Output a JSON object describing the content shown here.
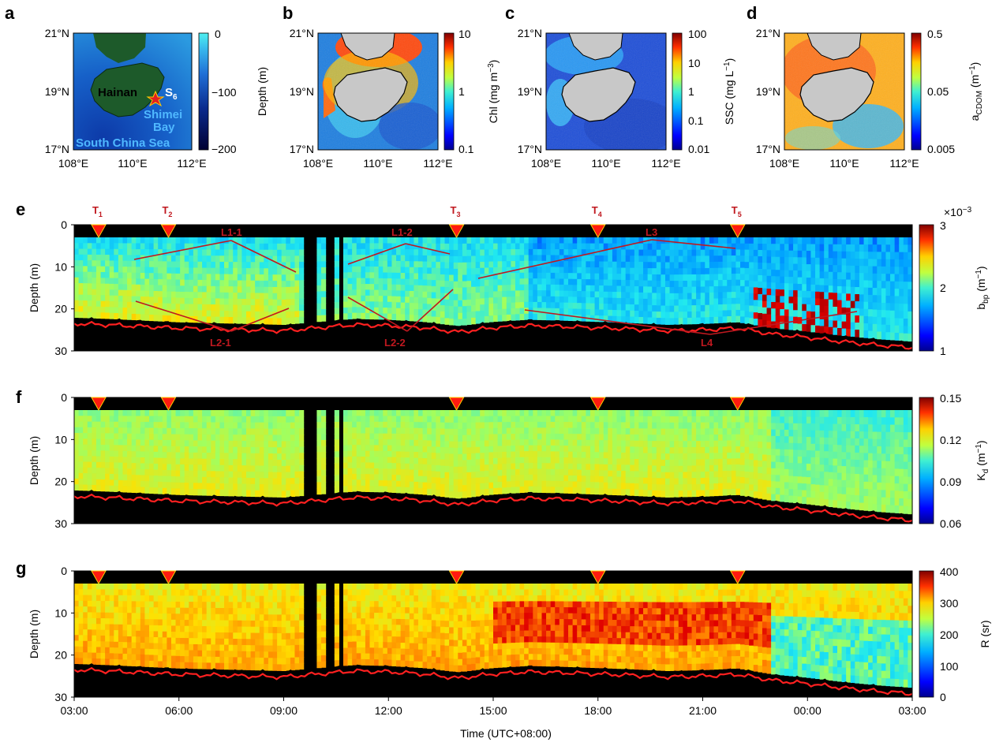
{
  "panel_labels": [
    "a",
    "b",
    "c",
    "d",
    "e",
    "f",
    "g"
  ],
  "chart_data": [
    {
      "id": "a",
      "type": "heatmap",
      "title": "",
      "xticks": [
        "108°E",
        "110°E",
        "112°E"
      ],
      "yticks": [
        "21°N",
        "19°N",
        "17°N"
      ],
      "colorbar": {
        "label": "Depth (m)",
        "ticks": [
          "0",
          "−100",
          "−200"
        ],
        "range": [
          -200,
          0
        ],
        "colormap": [
          "#000033",
          "#0a2a8c",
          "#1f6fd6",
          "#36b3ec",
          "#4ff0f0"
        ]
      },
      "annotations": {
        "island": "Hainan",
        "station": "S",
        "station_sub": "6",
        "bay_line1": "Shimei",
        "bay_line2": "Bay",
        "sea": "South China Sea"
      }
    },
    {
      "id": "b",
      "type": "heatmap",
      "xticks": [
        "108°E",
        "110°E",
        "112°E"
      ],
      "yticks": [
        "21°N",
        "19°N",
        "17°N"
      ],
      "colorbar": {
        "label_main": "Chl (mg m",
        "label_sup": "−3",
        "label_end": ")",
        "ticks": [
          "10",
          "1",
          "0.1"
        ],
        "range": [
          0.1,
          10
        ],
        "scale": "log"
      }
    },
    {
      "id": "c",
      "type": "heatmap",
      "xticks": [
        "108°E",
        "110°E",
        "112°E"
      ],
      "yticks": [
        "21°N",
        "19°N",
        "17°N"
      ],
      "colorbar": {
        "label_main": "SSC (mg L",
        "label_sup": "−1",
        "label_end": ")",
        "ticks": [
          "100",
          "10",
          "1",
          "0.1",
          "0.01"
        ],
        "range": [
          0.01,
          100
        ],
        "scale": "log"
      }
    },
    {
      "id": "d",
      "type": "heatmap",
      "xticks": [
        "108°E",
        "110°E",
        "112°E"
      ],
      "yticks": [
        "21°N",
        "19°N",
        "17°N"
      ],
      "colorbar": {
        "label_main": "a",
        "label_sub": "CDOM",
        "label_mid": " (m",
        "label_sup": "−1",
        "label_end": ")",
        "ticks": [
          "0.5",
          "0.05",
          "0.005"
        ],
        "range": [
          0.005,
          0.5
        ],
        "scale": "log"
      }
    },
    {
      "id": "e",
      "type": "heatmap",
      "xlabel": "",
      "ylabel": "Depth (m)",
      "yticks": [
        "0",
        "10",
        "20",
        "30"
      ],
      "ylim": [
        0,
        30
      ],
      "xlim_hours": [
        0,
        24
      ],
      "colorbar": {
        "label_main": "b",
        "label_sub": "bp",
        "label_mid": " (m",
        "label_sup": "−1",
        "label_end": ")",
        "ticks": [
          "3",
          "2",
          "1"
        ],
        "range": [
          1,
          3
        ],
        "multiplier": "×10",
        "multiplier_exp": "−3"
      },
      "transect_markers": [
        {
          "label": "T",
          "sub": "1",
          "hour": 0.7
        },
        {
          "label": "T",
          "sub": "2",
          "hour": 2.7
        },
        {
          "label": "T",
          "sub": "3",
          "hour": 10.95
        },
        {
          "label": "T",
          "sub": "4",
          "hour": 15.0
        },
        {
          "label": "T",
          "sub": "5",
          "hour": 19.0
        }
      ],
      "layer_labels": [
        "L1-1",
        "L1-2",
        "L3",
        "L2-1",
        "L2-2",
        "L4"
      ],
      "bottom_depth_m": [
        23.5,
        23.8,
        24.2,
        24.6,
        24.8,
        25.0,
        25.2,
        24.5,
        23.8,
        24.0,
        24.5,
        25.5,
        24.5,
        24.0,
        24.2,
        24.5,
        24.8,
        25.2,
        25.0,
        24.6,
        26.0,
        26.8,
        27.8,
        28.6,
        29.2
      ]
    },
    {
      "id": "f",
      "type": "heatmap",
      "ylabel": "Depth (m)",
      "yticks": [
        "0",
        "10",
        "20",
        "30"
      ],
      "ylim": [
        0,
        30
      ],
      "colorbar": {
        "label_main": "K",
        "label_sub": "d",
        "label_mid": " (m",
        "label_sup": "−1",
        "label_end": ")",
        "ticks": [
          "0.15",
          "0.12",
          "0.09",
          "0.06"
        ],
        "range": [
          0.06,
          0.15
        ]
      }
    },
    {
      "id": "g",
      "type": "heatmap",
      "xlabel": "Time (UTC+08:00)",
      "ylabel": "Depth (m)",
      "yticks": [
        "0",
        "10",
        "20",
        "30"
      ],
      "ylim": [
        0,
        30
      ],
      "xticks": [
        "03:00",
        "06:00",
        "09:00",
        "12:00",
        "15:00",
        "18:00",
        "21:00",
        "00:00",
        "03:00"
      ],
      "colorbar": {
        "label": "R (sr)",
        "ticks": [
          "400",
          "300",
          "200",
          "100",
          "0"
        ],
        "range": [
          0,
          400
        ]
      }
    }
  ],
  "colors": {
    "jet": [
      "#00008f",
      "#0000ff",
      "#00a0ff",
      "#20e8f0",
      "#a0ff60",
      "#ffe000",
      "#ff7000",
      "#e00000",
      "#800000"
    ],
    "annotation": "#c0181f",
    "bottom_line": "#ff2020",
    "land": "#c8c8c8",
    "hainan_green": "#1d5a2a"
  }
}
